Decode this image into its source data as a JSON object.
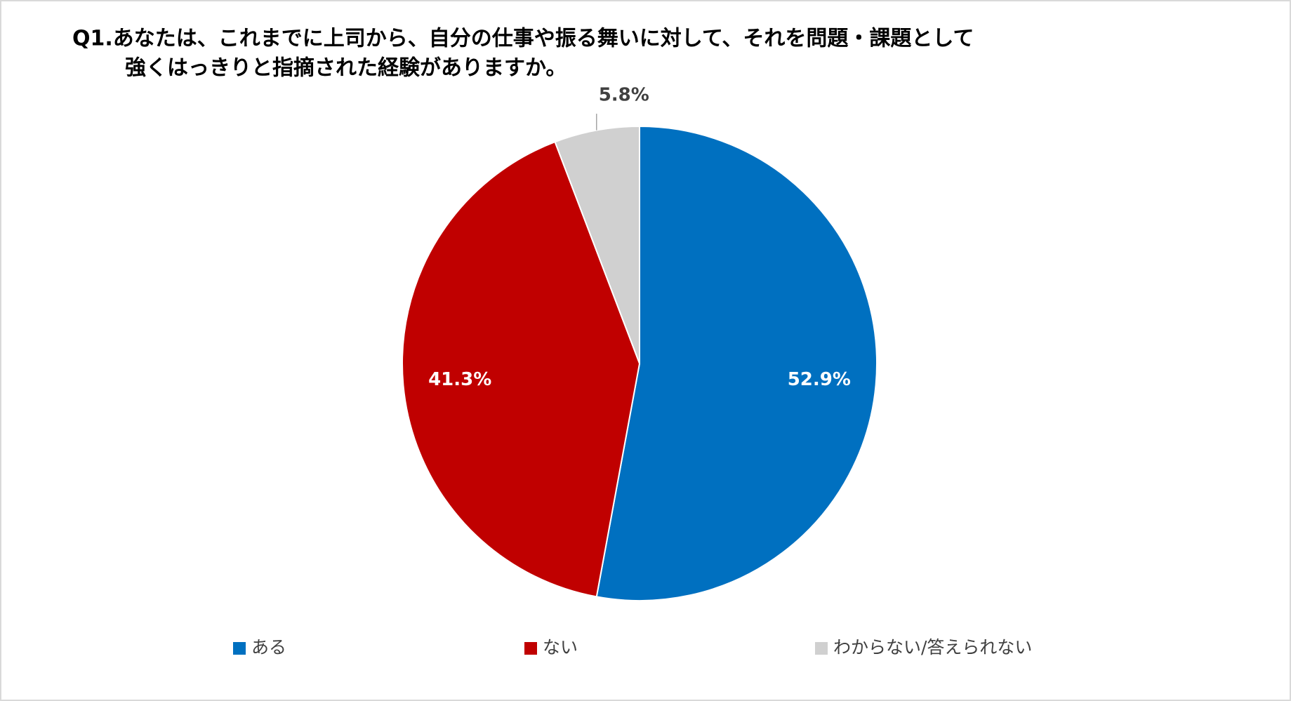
{
  "chart_data": {
    "type": "pie",
    "title": [
      "Q1.あなたは、これまでに上司から、自分の仕事や振る舞いに対して、それを問題・課題として",
      "強くはっきりと指摘された経験がありますか。"
    ],
    "categories": [
      "ある",
      "ない",
      "わからない/答えられない"
    ],
    "values": [
      52.9,
      41.3,
      5.8
    ],
    "value_labels": [
      "52.9%",
      "41.3%",
      "5.8%"
    ],
    "colors": [
      "#0070c0",
      "#c00000",
      "#d0d0d0"
    ],
    "legend": "bottom"
  }
}
